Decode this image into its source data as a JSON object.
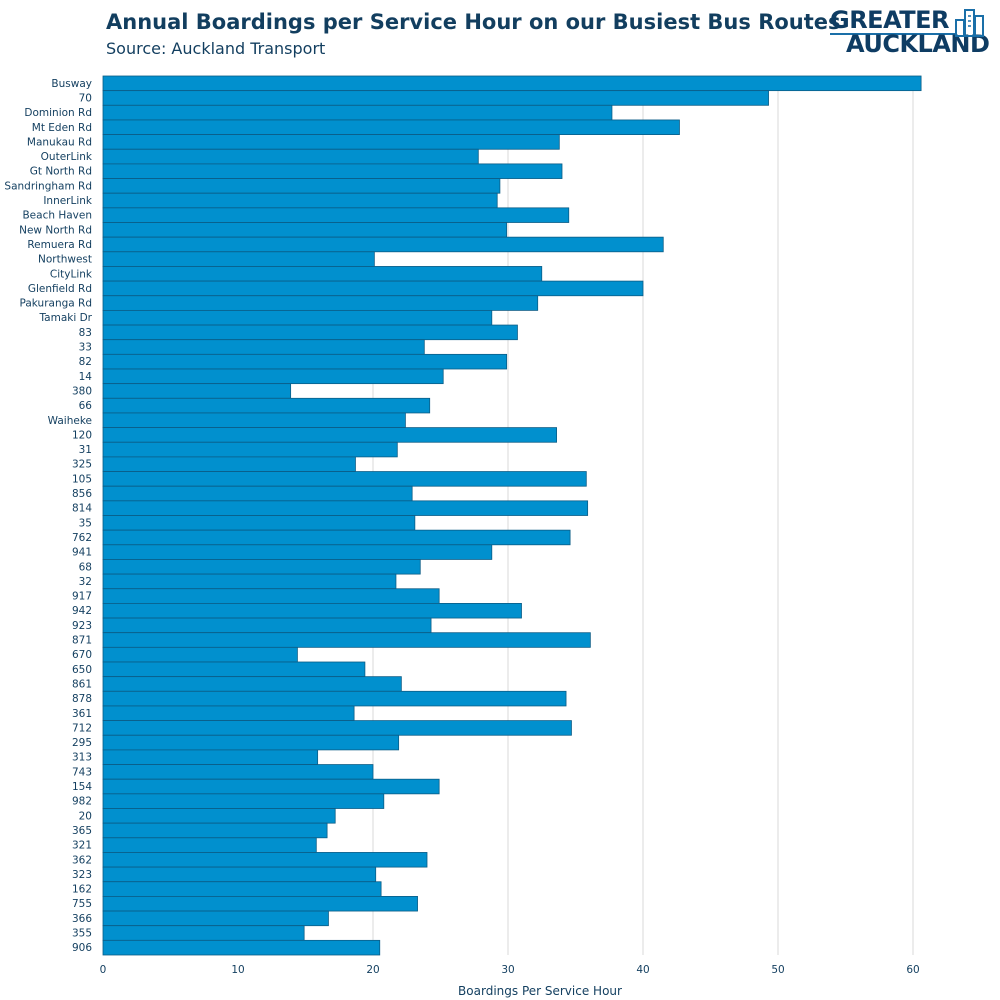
{
  "header": {
    "title": "Annual Boardings per Service Hour on our Busiest Bus Routes",
    "subtitle": "Source: Auckland Transport"
  },
  "logo": {
    "line1": "GREATER",
    "line2": "AUCKLAND",
    "icon": "buildings-icon"
  },
  "colors": {
    "bar_fill": "#0190ce",
    "bar_stroke": "#0b5c86",
    "grid": "#d9d9d9",
    "text": "#123e5f"
  },
  "chart_data": {
    "type": "bar",
    "orientation": "horizontal",
    "xlabel": "Boardings Per Service Hour",
    "xlim": [
      0,
      65
    ],
    "xticks": [
      0,
      10,
      20,
      30,
      40,
      50,
      60
    ],
    "grid": true,
    "categories": [
      "Busway",
      "70",
      "Dominion Rd",
      "Mt Eden Rd",
      "Manukau Rd",
      "OuterLink",
      "Gt North Rd",
      "Sandringham Rd",
      "InnerLink",
      "Beach Haven",
      "New North Rd",
      "Remuera Rd",
      "Northwest",
      "CityLink",
      "Glenfield Rd",
      "Pakuranga Rd",
      "Tamaki Dr",
      "83",
      "33",
      "82",
      "14",
      "380",
      "66",
      "Waiheke",
      "120",
      "31",
      "325",
      "105",
      "856",
      "814",
      "35",
      "762",
      "941",
      "68",
      "32",
      "917",
      "942",
      "923",
      "871",
      "670",
      "650",
      "861",
      "878",
      "361",
      "712",
      "295",
      "313",
      "743",
      "154",
      "982",
      "20",
      "365",
      "321",
      "362",
      "323",
      "162",
      "755",
      "366",
      "355",
      "906"
    ],
    "values": [
      60.6,
      49.3,
      37.7,
      42.7,
      33.8,
      27.8,
      34.0,
      29.4,
      29.2,
      34.5,
      29.9,
      41.5,
      20.1,
      32.5,
      40.0,
      32.2,
      28.8,
      30.7,
      23.8,
      29.9,
      25.2,
      13.9,
      24.2,
      22.4,
      33.6,
      21.8,
      18.7,
      35.8,
      22.9,
      35.9,
      23.1,
      34.6,
      28.8,
      23.5,
      21.7,
      24.9,
      31.0,
      24.3,
      36.1,
      14.4,
      19.4,
      22.1,
      34.3,
      18.6,
      34.7,
      21.9,
      15.9,
      20.0,
      24.9,
      20.8,
      17.2,
      16.6,
      15.8,
      24.0,
      20.2,
      20.6,
      23.3,
      16.7,
      14.9,
      20.5
    ]
  }
}
